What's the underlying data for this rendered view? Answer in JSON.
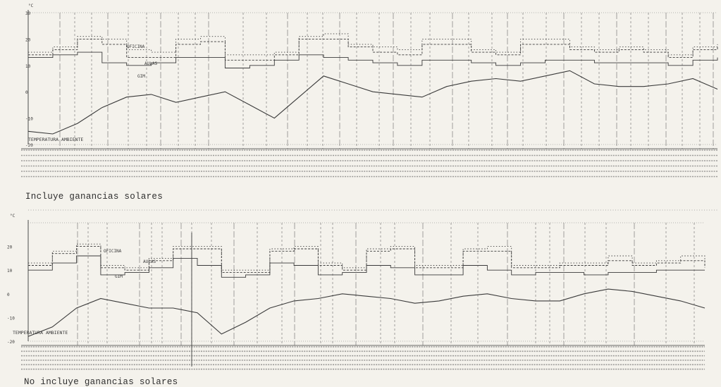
{
  "chart_data": [
    {
      "type": "line",
      "title": "",
      "caption": "Incluye ganancias solares",
      "ylabel": "°C",
      "ytick_labels": [
        "30",
        "20",
        "10",
        "0",
        "-10",
        "-20"
      ],
      "ylim": [
        -20,
        30
      ],
      "x": [
        0,
        6,
        12,
        18,
        24,
        30,
        36,
        42,
        48,
        54,
        60,
        66,
        72,
        78,
        84,
        90,
        96,
        102,
        108,
        114,
        120,
        126,
        132,
        138,
        144,
        150,
        156,
        162,
        168
      ],
      "grid": "vertical dashed lines",
      "series": [
        {
          "name": "OFICINA",
          "style": "dotted",
          "values": [
            15,
            17,
            21,
            20,
            16,
            15,
            20,
            21,
            14,
            14,
            15,
            21,
            22,
            18,
            17,
            16,
            20,
            20,
            16,
            15,
            20,
            20,
            17,
            16,
            17,
            16,
            14,
            17,
            18
          ]
        },
        {
          "name": "AULAS",
          "style": "dashed",
          "values": [
            14,
            16,
            20,
            18,
            13,
            13,
            18,
            19,
            12,
            12,
            14,
            20,
            20,
            17,
            15,
            14,
            18,
            18,
            15,
            14,
            18,
            18,
            16,
            15,
            16,
            15,
            13,
            16,
            17
          ]
        },
        {
          "name": "GIM",
          "style": "solid",
          "values": [
            13,
            14,
            15,
            11,
            10,
            11,
            13,
            13,
            9,
            10,
            12,
            14,
            13,
            12,
            11,
            10,
            12,
            12,
            11,
            10,
            11,
            12,
            12,
            11,
            11,
            11,
            10,
            12,
            13
          ]
        },
        {
          "name": "TEMPERATURA AMBIENTE",
          "style": "solid",
          "values": [
            -15,
            -16,
            -12,
            -6,
            -2,
            -1,
            -4,
            -2,
            0,
            -5,
            -10,
            -2,
            6,
            3,
            0,
            -1,
            -2,
            2,
            4,
            5,
            4,
            6,
            8,
            3,
            2,
            2,
            3,
            5,
            1
          ]
        }
      ]
    },
    {
      "type": "line",
      "title": "",
      "caption": "No incluye ganancias solares",
      "ylabel": "°C",
      "ytick_labels": [
        "20",
        "10",
        "0",
        "-10",
        "-20"
      ],
      "ylim": [
        -20,
        30
      ],
      "x": [
        0,
        6,
        12,
        18,
        24,
        30,
        36,
        42,
        48,
        54,
        60,
        66,
        72,
        78,
        84,
        90,
        96,
        102,
        108,
        114,
        120,
        126,
        132,
        138,
        144,
        150,
        156,
        162,
        168
      ],
      "grid": "vertical dashed lines",
      "series": [
        {
          "name": "OFICINA",
          "style": "dotted",
          "values": [
            13,
            18,
            21,
            12,
            11,
            15,
            20,
            20,
            10,
            10,
            19,
            20,
            13,
            11,
            19,
            20,
            12,
            12,
            19,
            20,
            12,
            12,
            13,
            13,
            16,
            13,
            14,
            16,
            12
          ]
        },
        {
          "name": "AULAS",
          "style": "dashed",
          "values": [
            12,
            17,
            20,
            11,
            10,
            14,
            19,
            19,
            9,
            9,
            18,
            19,
            12,
            10,
            18,
            19,
            11,
            11,
            18,
            18,
            11,
            11,
            12,
            12,
            14,
            12,
            13,
            14,
            11
          ]
        },
        {
          "name": "GIM",
          "style": "solid",
          "values": [
            10,
            13,
            16,
            8,
            9,
            11,
            15,
            12,
            7,
            8,
            13,
            12,
            8,
            9,
            12,
            11,
            8,
            8,
            12,
            10,
            8,
            9,
            9,
            8,
            9,
            9,
            10,
            10,
            10
          ]
        },
        {
          "name": "TEMPERATURA AMBIENTE",
          "style": "solid",
          "values": [
            -18,
            -14,
            -6,
            -2,
            -4,
            -6,
            -6,
            -8,
            -17,
            -12,
            -6,
            -3,
            -2,
            0,
            -1,
            -2,
            -4,
            -3,
            -1,
            0,
            -2,
            -3,
            -3,
            0,
            2,
            1,
            -1,
            -3,
            -6
          ]
        }
      ]
    }
  ],
  "colors": {
    "paper": "#f4f2ec",
    "ink": "#3a3a3a"
  }
}
